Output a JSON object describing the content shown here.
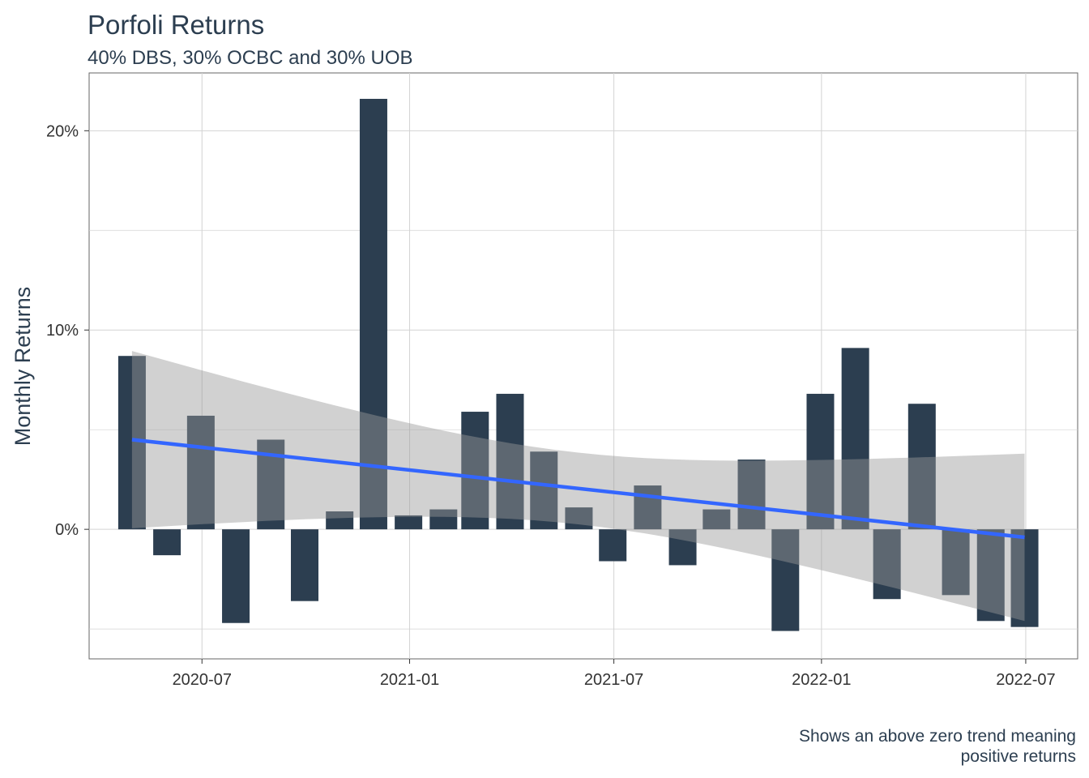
{
  "title": "Porfoli Returns",
  "subtitle": "40% DBS, 30% OCBC and 30% UOB",
  "caption_line1": "Shows an above zero trend meaning",
  "caption_line2": "positive returns",
  "colors": {
    "bar": "#2c3e50",
    "trend": "#3366ff",
    "ribbon": "#999999",
    "grid": "#d3d3d3",
    "text": "#2c3e50",
    "axis_text": "#333333"
  },
  "chart_data": {
    "type": "bar",
    "title": "Porfoli Returns",
    "subtitle": "40% DBS, 30% OCBC and 30% UOB",
    "xlabel": "",
    "ylabel": "Monthly Returns",
    "x": [
      "2020-04-30",
      "2020-05-31",
      "2020-06-30",
      "2020-07-31",
      "2020-08-31",
      "2020-09-30",
      "2020-10-31",
      "2020-11-30",
      "2020-12-31",
      "2021-01-31",
      "2021-02-28",
      "2021-03-31",
      "2021-04-30",
      "2021-05-31",
      "2021-06-30",
      "2021-07-31",
      "2021-08-31",
      "2021-09-30",
      "2021-10-31",
      "2021-11-30",
      "2021-12-31",
      "2022-01-31",
      "2022-02-28",
      "2022-03-31",
      "2022-04-30",
      "2022-05-31",
      "2022-06-30"
    ],
    "values": [
      0.087,
      -0.013,
      0.057,
      -0.047,
      0.045,
      -0.036,
      0.009,
      0.216,
      0.007,
      0.01,
      0.059,
      0.068,
      0.039,
      0.011,
      -0.016,
      0.022,
      -0.018,
      0.01,
      0.035,
      -0.051,
      0.068,
      0.091,
      -0.035,
      0.063,
      -0.033,
      -0.046,
      -0.049
    ],
    "trend": {
      "method": "lm",
      "x": [
        "2020-04-30",
        "2022-06-30"
      ],
      "y": [
        0.045,
        -0.004
      ],
      "band_lower": [
        0.001,
        -0.044
      ],
      "band_upper": [
        0.09,
        0.04
      ]
    },
    "xticks": [
      "2020-07",
      "2021-01",
      "2021-07",
      "2022-01",
      "2022-07"
    ],
    "xtick_dates": [
      "2020-07-01",
      "2021-01-01",
      "2021-07-01",
      "2022-01-01",
      "2022-07-01"
    ],
    "yticks": [
      "0%",
      "10%",
      "20%"
    ],
    "ytick_values": [
      0,
      0.1,
      0.2
    ],
    "ylim": [
      -0.065,
      0.229
    ],
    "xlim": [
      "2020-03-23",
      "2022-08-16"
    ],
    "grid": true,
    "legend": "none"
  }
}
